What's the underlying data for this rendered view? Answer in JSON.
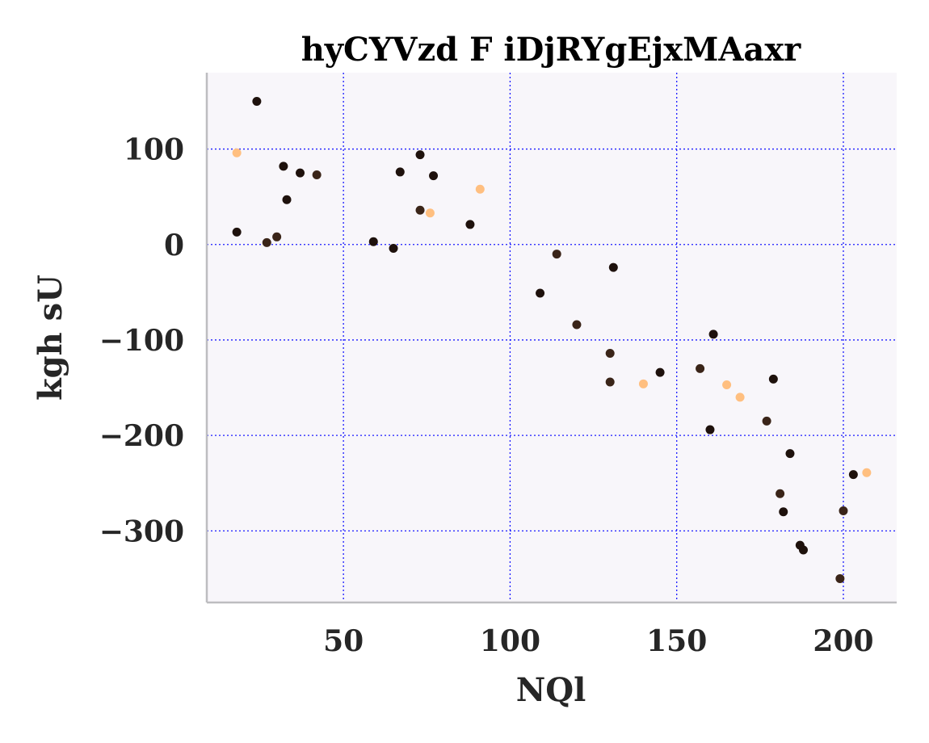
{
  "chart_data": {
    "type": "scatter",
    "title": "hyCYVzd F iDjRYgEjxMAaxr",
    "xlabel": "NQl",
    "ylabel": "kgh sU",
    "xlim": [
      9,
      216
    ],
    "ylim": [
      -375,
      180
    ],
    "xticks": [
      50,
      100,
      150,
      200
    ],
    "yticks": [
      100,
      0,
      -100,
      -200,
      -300
    ],
    "xtick_labels": [
      "50",
      "100",
      "150",
      "200"
    ],
    "ytick_labels": [
      "100",
      "0",
      "−100",
      "−200",
      "−300"
    ],
    "grid": true,
    "legend": "none",
    "colors": {
      "background": "#f8f6fa",
      "grid": "#1a1aff",
      "axis": "#bdbdc0",
      "dark": "#1e110c",
      "brown": "#3a2418",
      "orange": "#ffbf80"
    },
    "points": [
      {
        "x": 24,
        "y": 150,
        "c": "dark"
      },
      {
        "x": 18,
        "y": 96,
        "c": "orange"
      },
      {
        "x": 32,
        "y": 82,
        "c": "dark"
      },
      {
        "x": 37,
        "y": 75,
        "c": "dark"
      },
      {
        "x": 42,
        "y": 73,
        "c": "brown"
      },
      {
        "x": 33,
        "y": 47,
        "c": "dark"
      },
      {
        "x": 18,
        "y": 13,
        "c": "dark"
      },
      {
        "x": 27,
        "y": 2,
        "c": "brown"
      },
      {
        "x": 30,
        "y": 8,
        "c": "brown"
      },
      {
        "x": 73,
        "y": 94,
        "c": "dark"
      },
      {
        "x": 67,
        "y": 76,
        "c": "dark"
      },
      {
        "x": 77,
        "y": 72,
        "c": "dark"
      },
      {
        "x": 91,
        "y": 58,
        "c": "orange"
      },
      {
        "x": 73,
        "y": 36,
        "c": "brown"
      },
      {
        "x": 76,
        "y": 33,
        "c": "orange"
      },
      {
        "x": 88,
        "y": 21,
        "c": "dark"
      },
      {
        "x": 59,
        "y": 3,
        "c": "dark"
      },
      {
        "x": 65,
        "y": -4,
        "c": "dark"
      },
      {
        "x": 114,
        "y": -10,
        "c": "brown"
      },
      {
        "x": 131,
        "y": -24,
        "c": "dark"
      },
      {
        "x": 109,
        "y": -51,
        "c": "dark"
      },
      {
        "x": 120,
        "y": -84,
        "c": "brown"
      },
      {
        "x": 161,
        "y": -94,
        "c": "dark"
      },
      {
        "x": 130,
        "y": -114,
        "c": "brown"
      },
      {
        "x": 157,
        "y": -130,
        "c": "brown"
      },
      {
        "x": 145,
        "y": -134,
        "c": "dark"
      },
      {
        "x": 179,
        "y": -141,
        "c": "dark"
      },
      {
        "x": 130,
        "y": -144,
        "c": "brown"
      },
      {
        "x": 140,
        "y": -146,
        "c": "orange"
      },
      {
        "x": 165,
        "y": -147,
        "c": "orange"
      },
      {
        "x": 169,
        "y": -160,
        "c": "orange"
      },
      {
        "x": 177,
        "y": -185,
        "c": "brown"
      },
      {
        "x": 160,
        "y": -194,
        "c": "dark"
      },
      {
        "x": 184,
        "y": -219,
        "c": "dark"
      },
      {
        "x": 203,
        "y": -241,
        "c": "dark"
      },
      {
        "x": 207,
        "y": -239,
        "c": "orange"
      },
      {
        "x": 181,
        "y": -261,
        "c": "brown"
      },
      {
        "x": 182,
        "y": -280,
        "c": "dark"
      },
      {
        "x": 200,
        "y": -279,
        "c": "brown"
      },
      {
        "x": 187,
        "y": -315,
        "c": "dark"
      },
      {
        "x": 188,
        "y": -320,
        "c": "dark"
      },
      {
        "x": 199,
        "y": -350,
        "c": "brown"
      }
    ]
  }
}
